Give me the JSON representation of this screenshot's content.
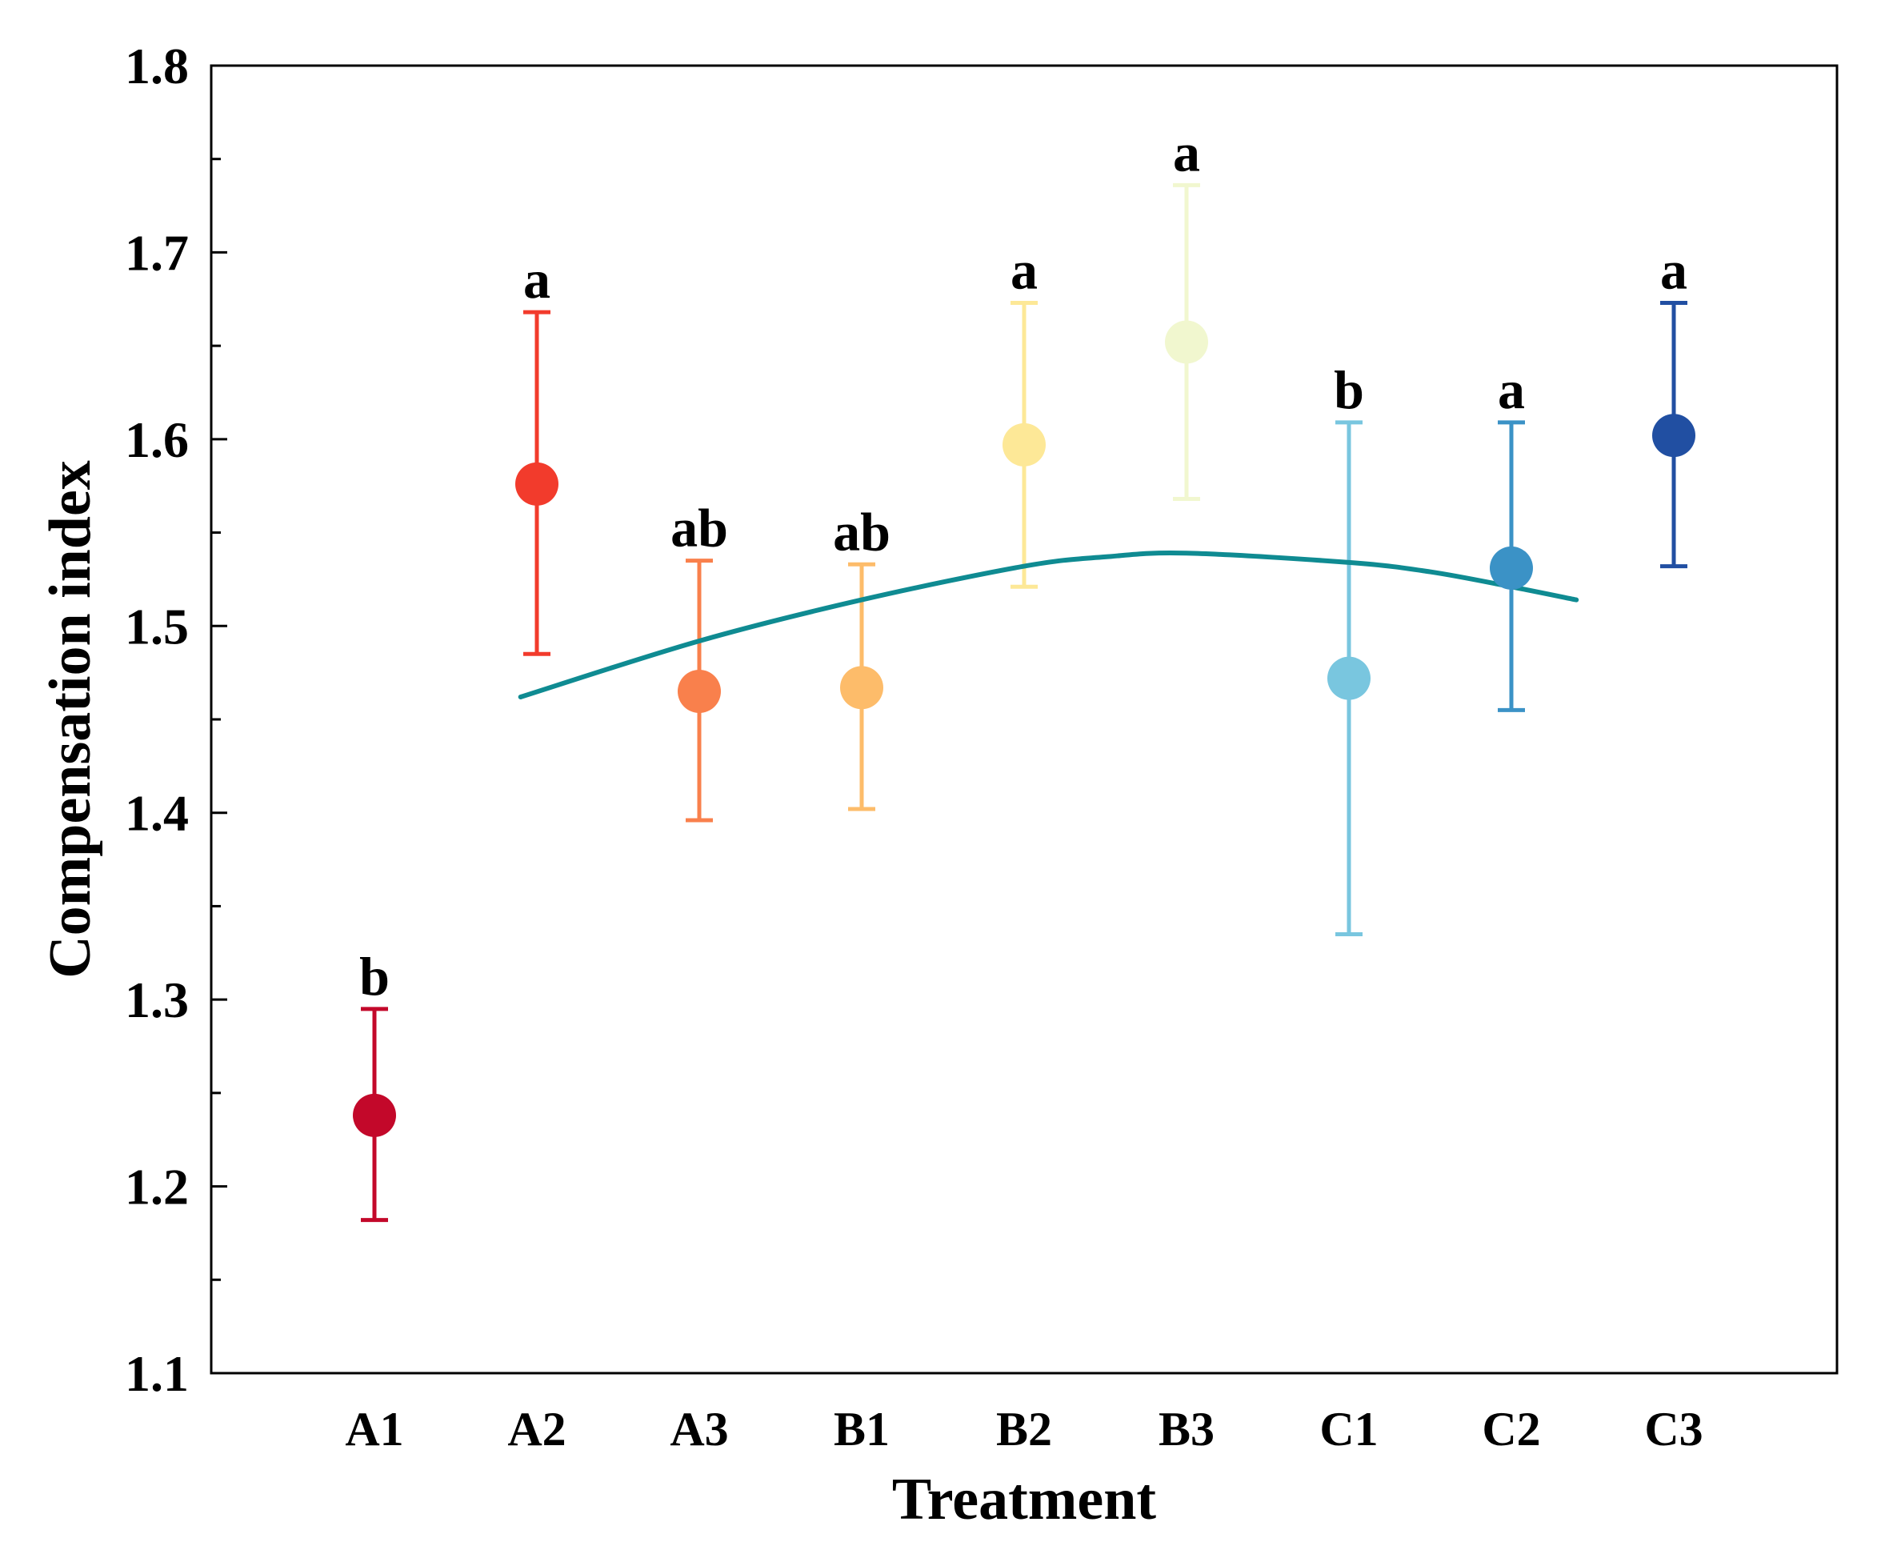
{
  "chart_data": {
    "type": "scatter",
    "title": "",
    "xlabel": "Treatment",
    "ylabel": "Compensation index",
    "ylim": [
      1.1,
      1.8
    ],
    "yticks": [
      {
        "value": 1.1,
        "label": "1.1"
      },
      {
        "value": 1.2,
        "label": "1.2"
      },
      {
        "value": 1.3,
        "label": "1.3"
      },
      {
        "value": 1.4,
        "label": "1.4"
      },
      {
        "value": 1.5,
        "label": "1.5"
      },
      {
        "value": 1.6,
        "label": "1.6"
      },
      {
        "value": 1.7,
        "label": "1.7"
      },
      {
        "value": 1.8,
        "label": "1.8"
      }
    ],
    "yminor_ticks": [
      1.15,
      1.25,
      1.35,
      1.45,
      1.55,
      1.65,
      1.75
    ],
    "categories": [
      "A1",
      "A2",
      "A3",
      "B1",
      "B2",
      "B3",
      "C1",
      "C2",
      "C3"
    ],
    "points": [
      {
        "category": "A1",
        "mean": 1.238,
        "lower": 1.182,
        "upper": 1.295,
        "letter": "b",
        "color": "#c3082a"
      },
      {
        "category": "A2",
        "mean": 1.576,
        "lower": 1.485,
        "upper": 1.668,
        "letter": "a",
        "color": "#f23b2c"
      },
      {
        "category": "A3",
        "mean": 1.465,
        "lower": 1.396,
        "upper": 1.535,
        "letter": "ab",
        "color": "#f9804c"
      },
      {
        "category": "B1",
        "mean": 1.467,
        "lower": 1.402,
        "upper": 1.533,
        "letter": "ab",
        "color": "#fdbc6a"
      },
      {
        "category": "B2",
        "mean": 1.597,
        "lower": 1.521,
        "upper": 1.673,
        "letter": "a",
        "color": "#fde897"
      },
      {
        "category": "B3",
        "mean": 1.652,
        "lower": 1.568,
        "upper": 1.736,
        "letter": "a",
        "color": "#f1f7cf"
      },
      {
        "category": "C1",
        "mean": 1.472,
        "lower": 1.335,
        "upper": 1.609,
        "letter": "b",
        "color": "#79c6df"
      },
      {
        "category": "C2",
        "mean": 1.531,
        "lower": 1.455,
        "upper": 1.609,
        "letter": "a",
        "color": "#3b92c6"
      },
      {
        "category": "C3",
        "mean": 1.602,
        "lower": 1.532,
        "upper": 1.673,
        "letter": "a",
        "color": "#214fa2"
      }
    ],
    "trend_line": {
      "color": "#0f8b92",
      "x": [
        1.9,
        3.0,
        4.0,
        5.0,
        5.5,
        6.0,
        7.0,
        7.5,
        8.0,
        8.4
      ],
      "y": [
        1.462,
        1.492,
        1.514,
        1.532,
        1.537,
        1.539,
        1.534,
        1.529,
        1.521,
        1.514
      ]
    }
  }
}
